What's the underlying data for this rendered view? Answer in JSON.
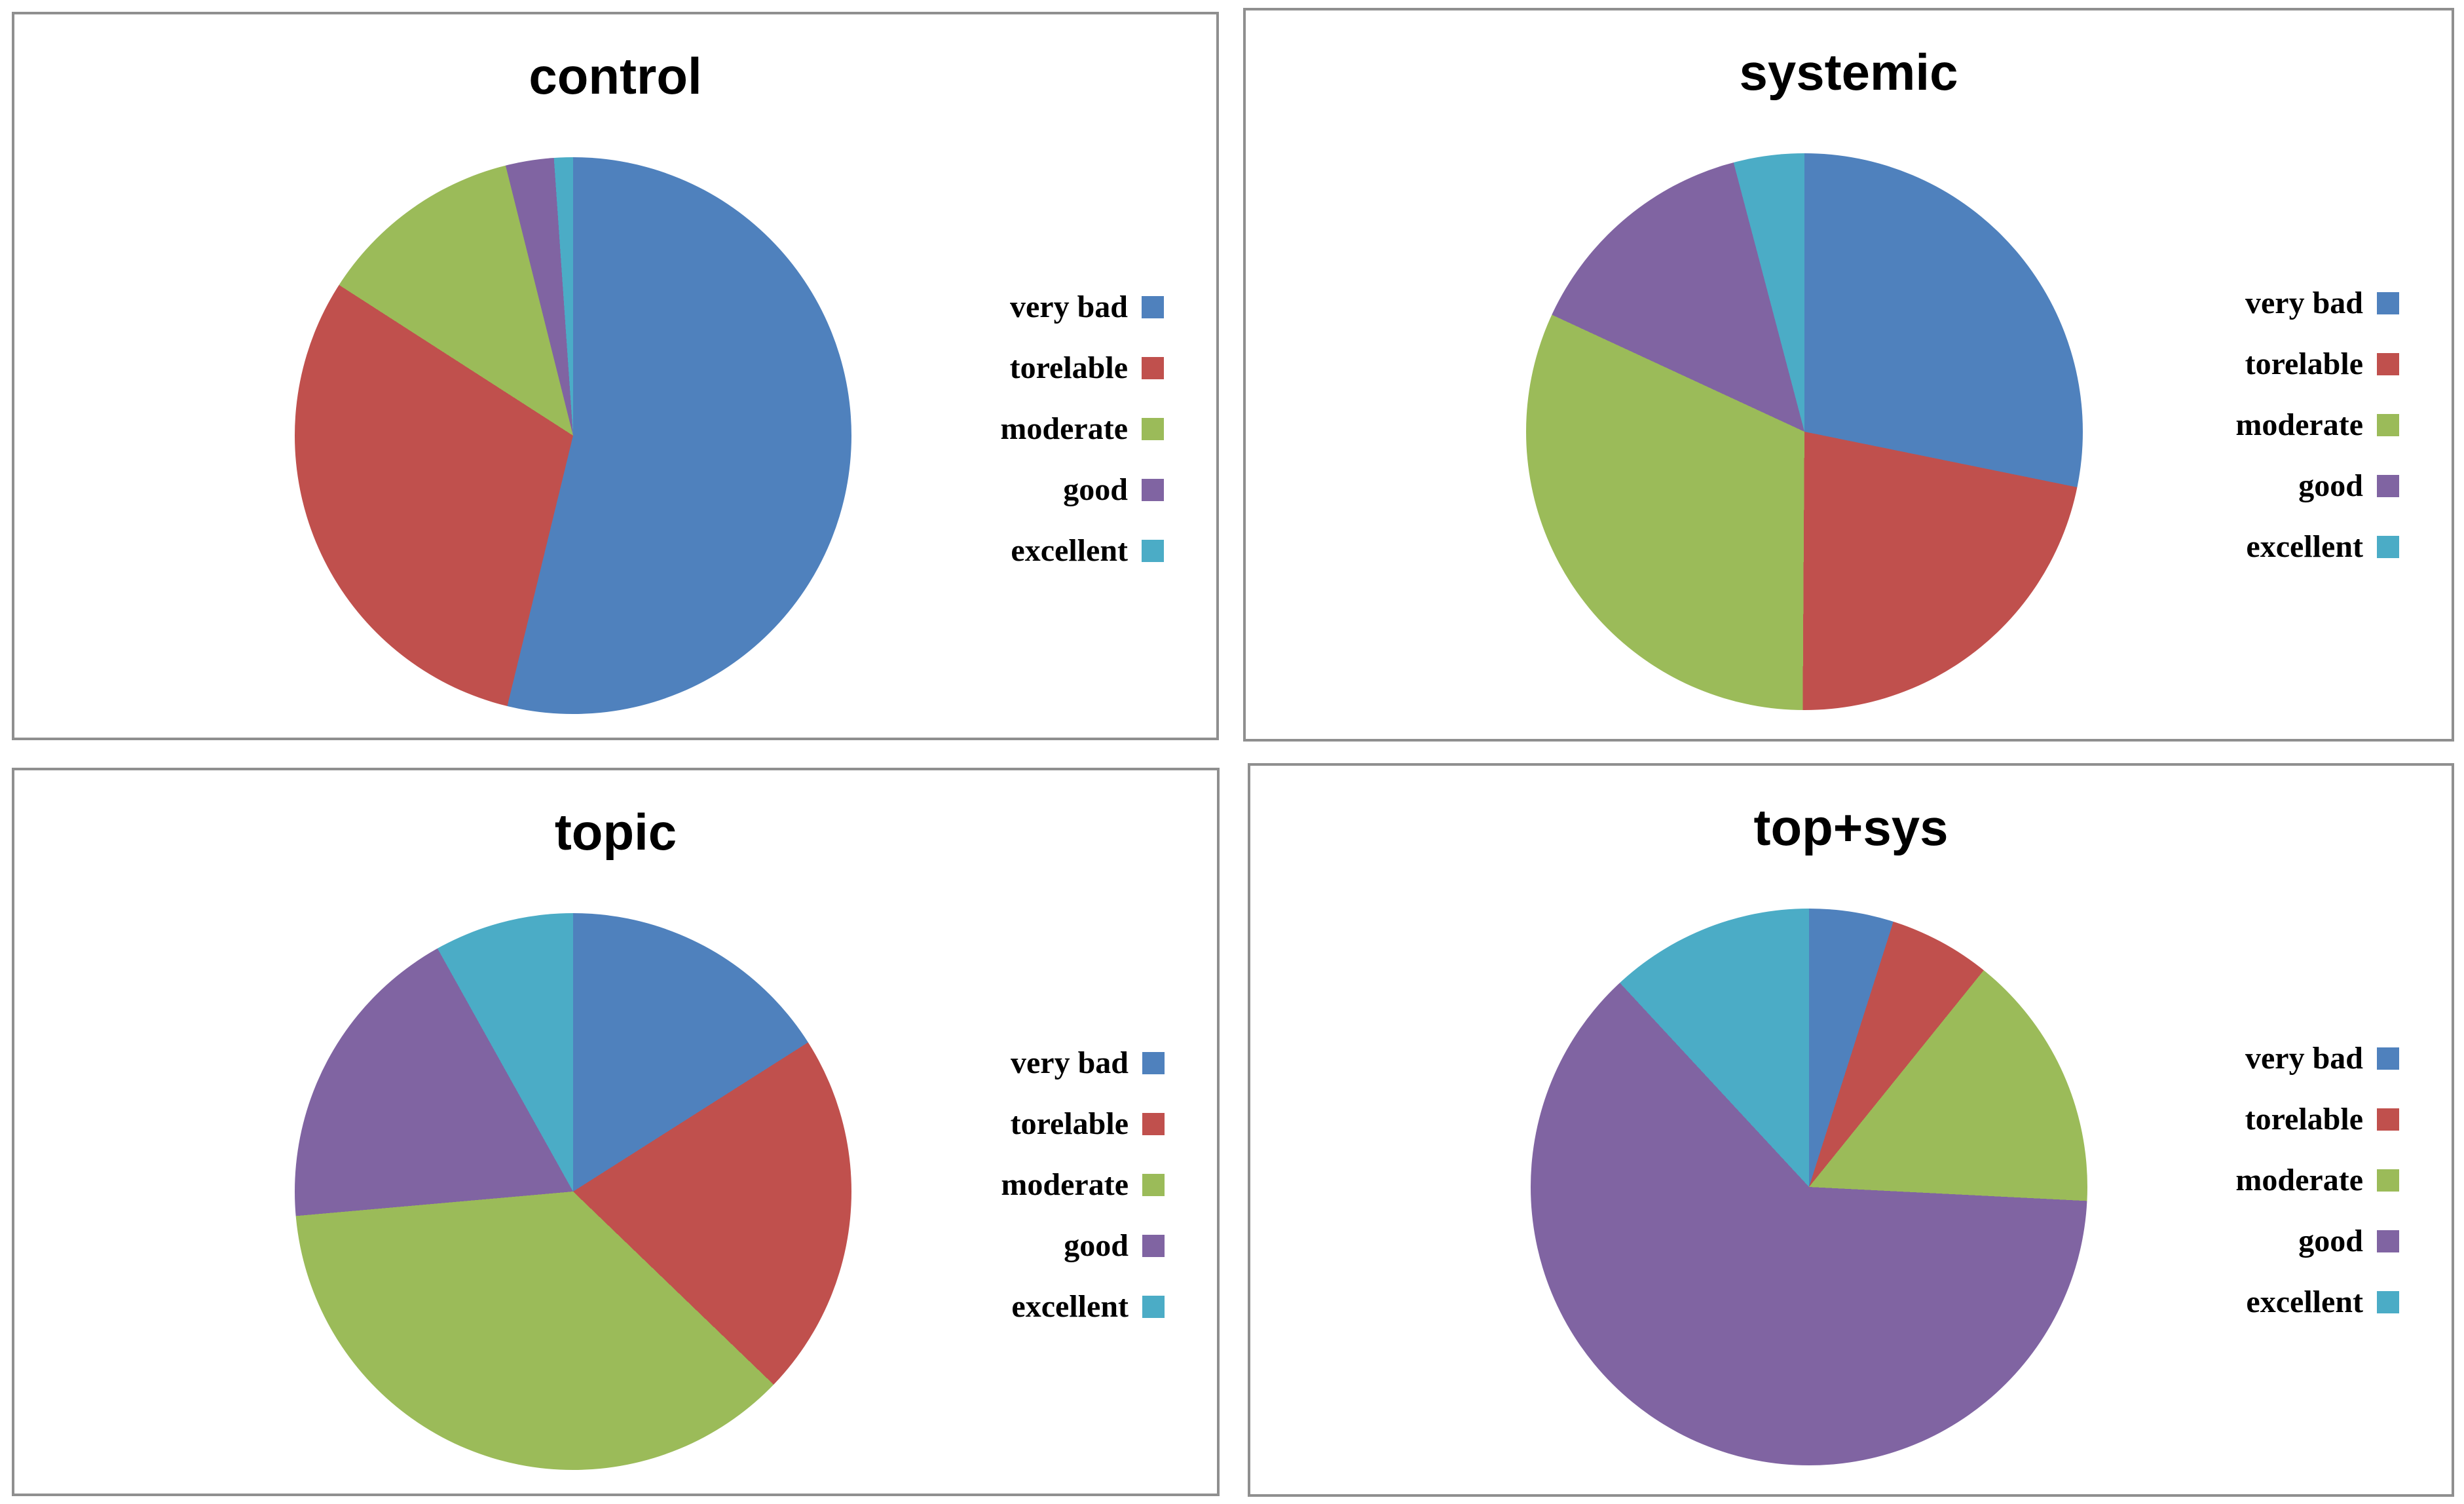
{
  "figure": {
    "background_color": "#ffffff",
    "panel_border_color": "#8f8f8f",
    "layout": "2x2 grid of pie charts"
  },
  "palette": {
    "very_bad": "#4F81BD",
    "torelable": "#C0504D",
    "moderate": "#9BBB59",
    "good": "#8064A2",
    "excellent": "#4BACC6"
  },
  "chart_data": [
    {
      "type": "pie",
      "title": "control",
      "categories": [
        "very bad",
        "torelable",
        "moderate",
        "good",
        "excellent"
      ],
      "values": [
        53.8,
        30.3,
        12.0,
        2.8,
        1.1
      ],
      "colors": [
        "#4F81BD",
        "#C0504D",
        "#9BBB59",
        "#8064A2",
        "#4BACC6"
      ],
      "unit": "percent",
      "start_angle_deg": 0,
      "direction": "clockwise",
      "legend_position": "right",
      "data_labels": "none"
    },
    {
      "type": "pie",
      "title": "systemic",
      "categories": [
        "very bad",
        "torelable",
        "moderate",
        "good",
        "excellent"
      ],
      "values": [
        28.2,
        21.9,
        31.8,
        14.0,
        4.1
      ],
      "colors": [
        "#4F81BD",
        "#C0504D",
        "#9BBB59",
        "#8064A2",
        "#4BACC6"
      ],
      "unit": "percent",
      "start_angle_deg": 0,
      "direction": "clockwise",
      "legend_position": "right",
      "data_labels": "none"
    },
    {
      "type": "pie",
      "title": "topic",
      "categories": [
        "very bad",
        "torelable",
        "moderate",
        "good",
        "excellent"
      ],
      "values": [
        16.0,
        21.2,
        36.4,
        18.3,
        8.1
      ],
      "colors": [
        "#4F81BD",
        "#C0504D",
        "#9BBB59",
        "#8064A2",
        "#4BACC6"
      ],
      "unit": "percent",
      "start_angle_deg": 0,
      "direction": "clockwise",
      "legend_position": "right",
      "data_labels": "none"
    },
    {
      "type": "pie",
      "title": "top+sys",
      "categories": [
        "very bad",
        "torelable",
        "moderate",
        "good",
        "excellent"
      ],
      "values": [
        4.9,
        5.9,
        15.0,
        62.3,
        11.9
      ],
      "colors": [
        "#4F81BD",
        "#C0504D",
        "#9BBB59",
        "#8064A2",
        "#4BACC6"
      ],
      "unit": "percent",
      "start_angle_deg": 0,
      "direction": "clockwise",
      "legend_position": "right",
      "data_labels": "none"
    }
  ]
}
